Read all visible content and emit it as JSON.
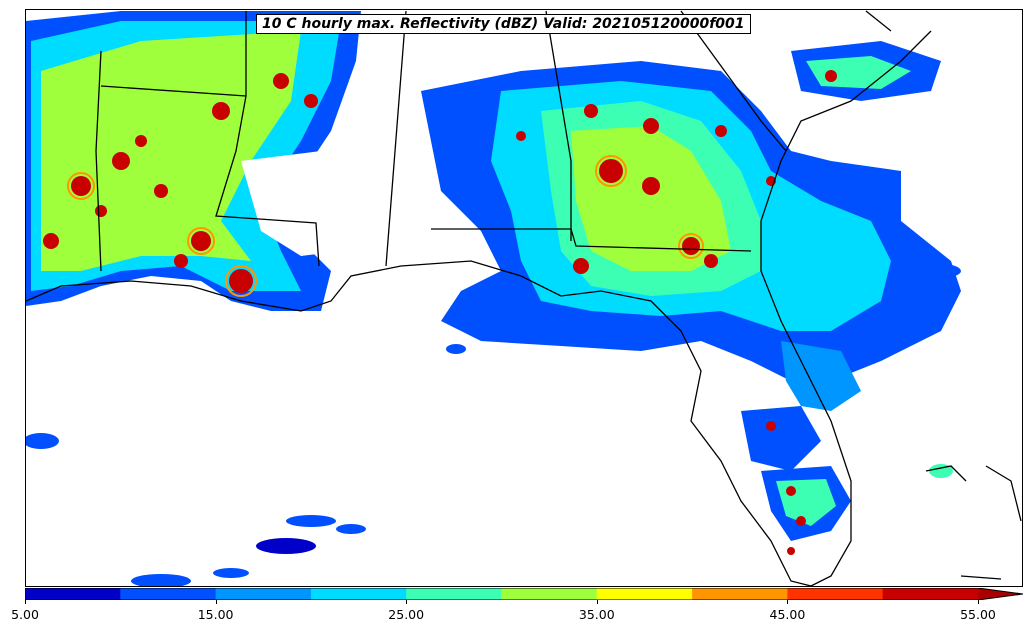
{
  "title": "10 C hourly max. Reflectivity (dBZ) Valid: 202105120000f001",
  "colorbar": {
    "min": 5,
    "max": 55,
    "step": 5,
    "extend": "max",
    "colors": [
      "#0000c8",
      "#0050ff",
      "#0096ff",
      "#00dcff",
      "#3cffb4",
      "#a0ff3c",
      "#ffff00",
      "#ff9600",
      "#ff3200",
      "#c80000",
      "#aa0000"
    ],
    "tick_labels": [
      "5.00",
      "15.00",
      "25.00",
      "35.00",
      "45.00",
      "55.00"
    ]
  }
}
